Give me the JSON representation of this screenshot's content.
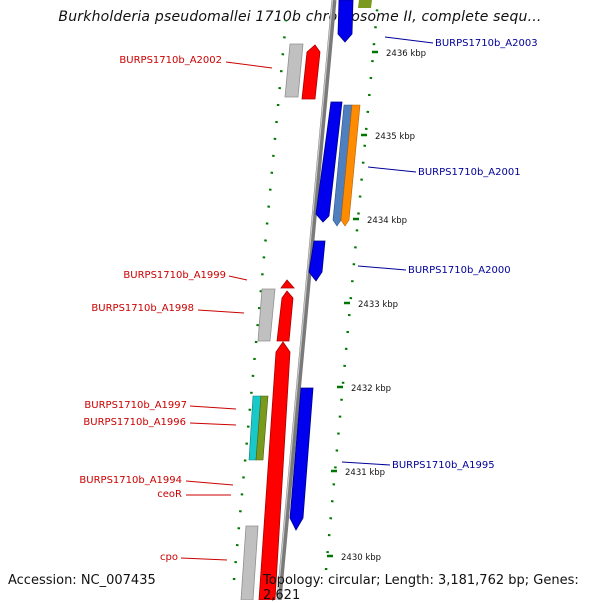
{
  "title": "Burkholderia pseudomallei 1710b chromosome II, complete sequ...",
  "footer": {
    "accession": "Accession: NC_007435",
    "summary": "Topology: circular; Length: 3,181,762 bp; Genes: 2,621"
  },
  "colors": {
    "forward_label": "#cc0000",
    "reverse_label": "#000099",
    "forward_gene": "#ff0000",
    "reverse_gene": "#0000ee",
    "pseudo_gene": "#c0c0c0",
    "tick": "#007700",
    "backbone": "#888888"
  },
  "kbp_ticks": [
    "2436 kbp",
    "2435 kbp",
    "2434 kbp",
    "2433 kbp",
    "2432 kbp",
    "2431 kbp",
    "2430 kbp"
  ],
  "reverse_labels": [
    "BURPS1710b_A2003",
    "BURPS1710b_A2001",
    "BURPS1710b_A2000",
    "BURPS1710b_A1995"
  ],
  "forward_labels": [
    "BURPS1710b_A2002",
    "BURPS1710b_A1999",
    "BURPS1710b_A1998",
    "BURPS1710b_A1997",
    "BURPS1710b_A1996",
    "BURPS1710b_A1994",
    "ceoR",
    "cpo"
  ]
}
